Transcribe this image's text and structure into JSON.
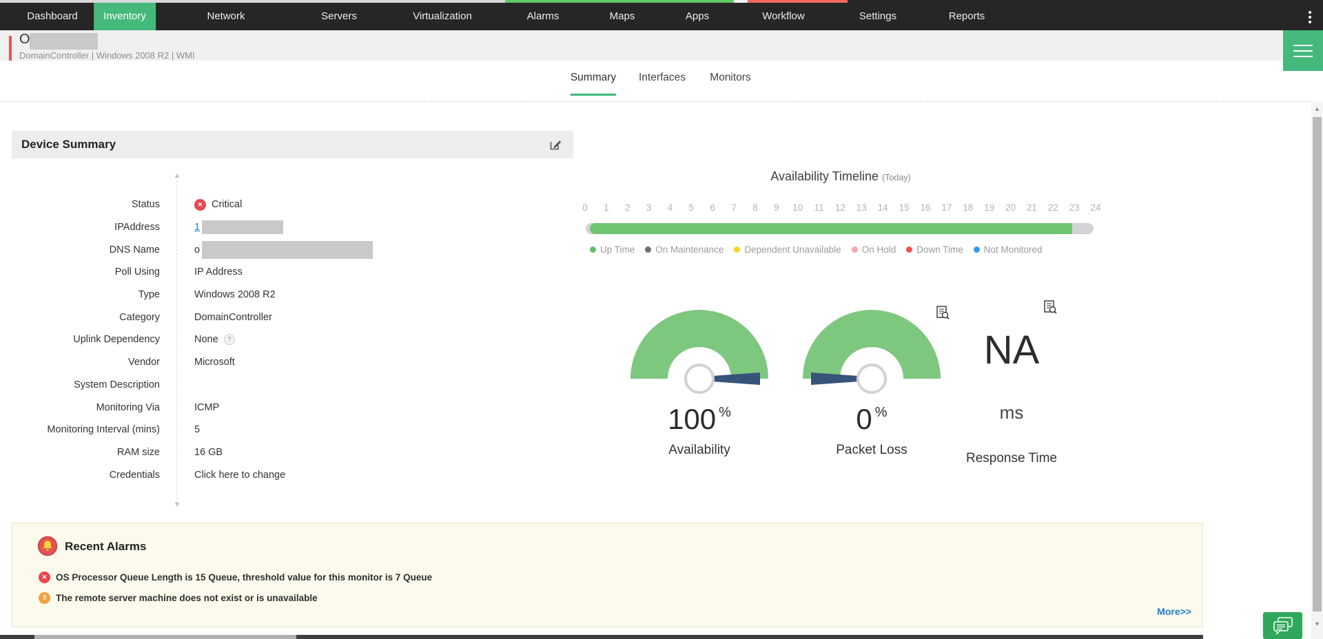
{
  "nav": {
    "items": [
      "Dashboard",
      "Inventory",
      "Network",
      "Servers",
      "Virtualization",
      "Alarms",
      "Maps",
      "Apps",
      "Workflow",
      "Settings",
      "Reports"
    ],
    "active": "Inventory",
    "overflow_menu_icon": "kebab-menu-icon"
  },
  "device_header": {
    "name": "O",
    "name_redacted": true,
    "meta": "DomainController | Windows 2008 R2 | WMI",
    "status_accent_color": "#e8554d"
  },
  "toolbar": {
    "icons": [
      "area-chart-image-icon",
      "alarm-bell-icon",
      "workflow-icon",
      "mail-icon",
      "link-icon",
      "line-graph-icon",
      "globe-icon",
      "remote-desktop-icon",
      "terminal-icon",
      "chevron-left-icon",
      "chevron-right-icon",
      "menu-icon"
    ],
    "mail_has_badge": true
  },
  "tabs": {
    "items": [
      "Summary",
      "Interfaces",
      "Monitors"
    ],
    "active": "Summary"
  },
  "device_summary": {
    "title": "Device Summary",
    "fields": [
      {
        "label": "Status",
        "value": "Critical",
        "type": "status-critical"
      },
      {
        "label": "IPAddress",
        "value": "1",
        "type": "link-redacted"
      },
      {
        "label": "DNS Name",
        "value": "o",
        "type": "redacted"
      },
      {
        "label": "Poll Using",
        "value": "IP Address"
      },
      {
        "label": "Type",
        "value": "Windows 2008 R2"
      },
      {
        "label": "Category",
        "value": "DomainController"
      },
      {
        "label": "Uplink Dependency",
        "value": "None",
        "type": "help"
      },
      {
        "label": "Vendor",
        "value": "Microsoft"
      },
      {
        "label": "System Description",
        "value": ""
      },
      {
        "label": "Monitoring Via",
        "value": "ICMP"
      },
      {
        "label": "Monitoring Interval (mins)",
        "value": "5"
      },
      {
        "label": "RAM size",
        "value": "16 GB"
      },
      {
        "label": "Credentials",
        "value": "Click here to change",
        "type": "action"
      }
    ]
  },
  "timeline": {
    "title": "Availability Timeline",
    "subtitle": "(Today)",
    "hours": [
      "0",
      "1",
      "2",
      "3",
      "4",
      "5",
      "6",
      "7",
      "8",
      "9",
      "10",
      "11",
      "12",
      "13",
      "14",
      "15",
      "16",
      "17",
      "18",
      "19",
      "20",
      "21",
      "22",
      "23",
      "24"
    ],
    "total_hours": 24,
    "up_from_hour": 0,
    "up_to_hour": 23,
    "legend": [
      {
        "label": "Up Time",
        "color": "#66bb6a"
      },
      {
        "label": "On Maintenance",
        "color": "#6e6e6e"
      },
      {
        "label": "Dependent Unavailable",
        "color": "#f2d522"
      },
      {
        "label": "On Hold",
        "color": "#f3a6ad"
      },
      {
        "label": "Down Time",
        "color": "#ef5350"
      },
      {
        "label": "Not Monitored",
        "color": "#2e9bf2"
      }
    ]
  },
  "gauges": [
    {
      "value": "100",
      "unit": "%",
      "label": "Availability",
      "percent": 100
    },
    {
      "value": "0",
      "unit": "%",
      "label": "Packet Loss",
      "percent": 0
    },
    {
      "value": "NA",
      "unit": "ms",
      "label": "Response Time",
      "percent": null
    }
  ],
  "recent_alarms": {
    "title": "Recent Alarms",
    "alarms": [
      {
        "severity": "critical",
        "text": "OS Processor Queue Length is 15 Queue, threshold value for this monitor is 7 Queue"
      },
      {
        "severity": "attention",
        "text": "The remote server machine does not exist or is unavailable"
      }
    ],
    "more_label": "More>>"
  },
  "chart_data": [
    {
      "type": "timeline",
      "title": "Availability Timeline (Today)",
      "x_range": [
        0,
        24
      ],
      "segments": [
        {
          "state": "Up Time",
          "from": 0,
          "to": 23
        },
        {
          "state": "No Data",
          "from": 23,
          "to": 24
        }
      ]
    },
    {
      "type": "gauge",
      "title": "Availability",
      "value": 100,
      "unit": "%",
      "range": [
        0,
        100
      ]
    },
    {
      "type": "gauge",
      "title": "Packet Loss",
      "value": 0,
      "unit": "%",
      "range": [
        0,
        100
      ]
    },
    {
      "type": "gauge",
      "title": "Response Time",
      "value": "NA",
      "unit": "ms"
    }
  ],
  "colors": {
    "brand_green": "#45b97c",
    "tab_underline_green": "#3cb878",
    "gauge_green": "#7ec77f",
    "needle_navy": "#37537a",
    "timeline_green": "#6fc472",
    "critical_red": "#e5484d",
    "attention_orange": "#f0a13e",
    "link_blue": "#2180d8",
    "alarms_panel_bg": "#fbfaec"
  }
}
